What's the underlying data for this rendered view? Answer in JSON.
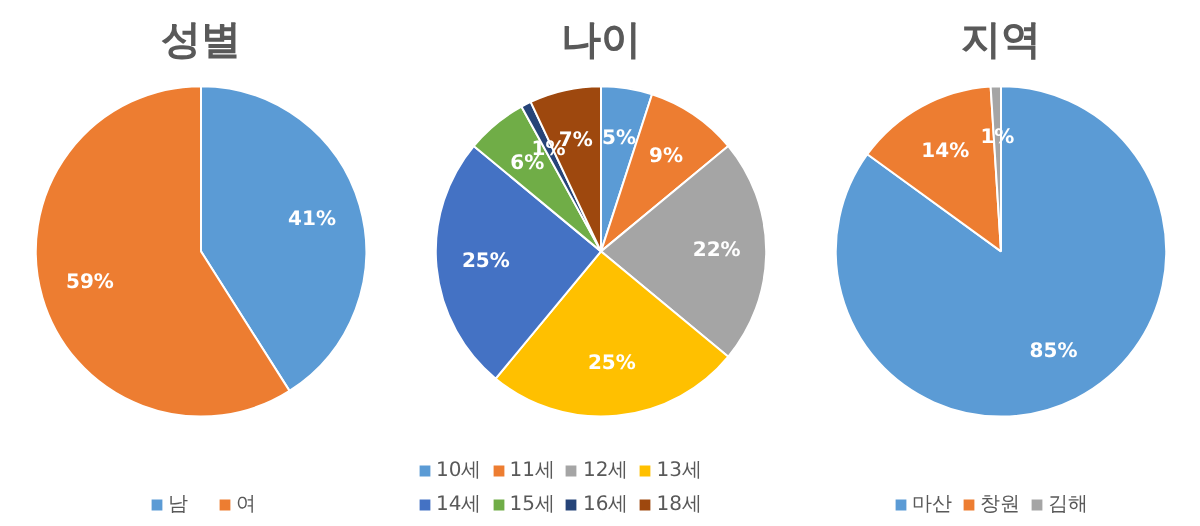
{
  "chart_data": [
    {
      "type": "pie",
      "title": "성별",
      "categories": [
        "남",
        "여"
      ],
      "values": [
        41,
        59
      ],
      "value_labels": [
        "41%",
        "59%"
      ],
      "colors": [
        "#5b9bd5",
        "#ed7d31"
      ],
      "legend": "bottom"
    },
    {
      "type": "pie",
      "title": "나이",
      "categories": [
        "10세",
        "11세",
        "12세",
        "13세",
        "14세",
        "15세",
        "16세",
        "18세"
      ],
      "values": [
        5,
        9,
        22,
        25,
        25,
        6,
        1,
        7
      ],
      "value_labels": [
        "5%",
        "9%",
        "22%",
        "25%",
        "25%",
        "6%",
        "1%",
        "7%"
      ],
      "colors": [
        "#5b9bd5",
        "#ed7d31",
        "#a5a5a5",
        "#ffc000",
        "#4472c4",
        "#70ad47",
        "#264478",
        "#9e480e"
      ],
      "legend": "bottom"
    },
    {
      "type": "pie",
      "title": "지역",
      "categories": [
        "마산",
        "창원",
        "김해"
      ],
      "values": [
        85,
        14,
        1
      ],
      "value_labels": [
        "85%",
        "14%",
        "1%"
      ],
      "colors": [
        "#5b9bd5",
        "#ed7d31",
        "#a5a5a5"
      ],
      "legend": "bottom"
    }
  ]
}
